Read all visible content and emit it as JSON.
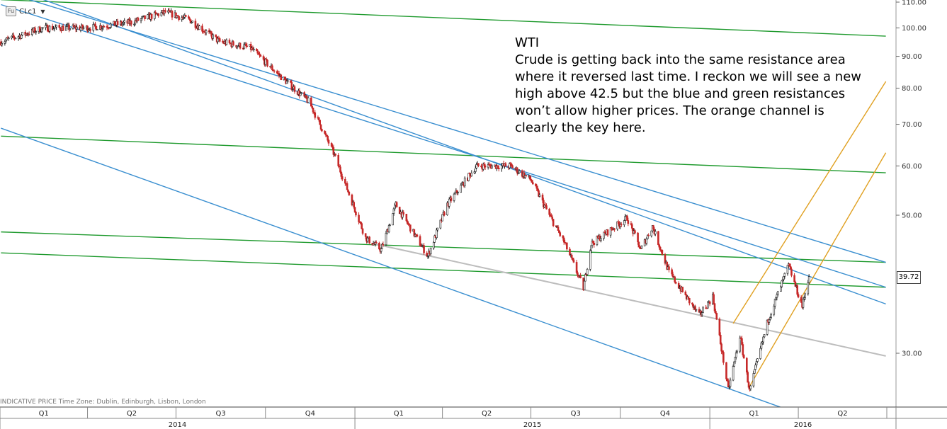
{
  "symbol": {
    "code": "CLc1",
    "badge": "Fu"
  },
  "footer_note": "INDICATIVE PRICE   Time Zone: Dublin, Edinburgh, Lisbon, London",
  "annotation": {
    "title": "WTI",
    "lines": [
      "Crude is getting back into the same resistance area",
      "where it reversed last time. I reckon we will see a new",
      "high above 42.5 but the blue and green resistances",
      "won’t allow higher prices. The orange channel is",
      "clearly the key here."
    ]
  },
  "colors": {
    "support_resistance_green": "#1f9a2e",
    "trend_blue": "#3a8fd0",
    "channel_orange": "#e0a020",
    "trend_gray": "#bdbdbd",
    "candle_up": "#1a1a1a",
    "candle_down": "#c62828"
  },
  "chart_data": {
    "type": "candlestick",
    "instrument": "CLc1",
    "y_scale": "log",
    "ylim": [
      24,
      112
    ],
    "y_ticks": [
      "110.00",
      "100.00",
      "90.00",
      "80.00",
      "70.00",
      "60.00",
      "50.00",
      "30.00"
    ],
    "last_price": "39.72",
    "quarters": [
      "Q1",
      "Q2",
      "Q3",
      "Q4",
      "Q1",
      "Q2",
      "Q3",
      "Q4",
      "Q1",
      "Q2"
    ],
    "years": [
      "2014",
      "2015",
      "2016"
    ],
    "price_path": [
      [
        "2014-01-02",
        95
      ],
      [
        "2014-02-15",
        100
      ],
      [
        "2014-04-01",
        100
      ],
      [
        "2014-05-15",
        102
      ],
      [
        "2014-06-20",
        106
      ],
      [
        "2014-07-15",
        103
      ],
      [
        "2014-08-15",
        95
      ],
      [
        "2014-09-15",
        93
      ],
      [
        "2014-10-15",
        84
      ],
      [
        "2014-11-15",
        76
      ],
      [
        "2014-12-10",
        63
      ],
      [
        "2015-01-12",
        46
      ],
      [
        "2015-01-28",
        44
      ],
      [
        "2015-02-12",
        52
      ],
      [
        "2015-03-17",
        43
      ],
      [
        "2015-04-06",
        52
      ],
      [
        "2015-05-06",
        60
      ],
      [
        "2015-06-10",
        60
      ],
      [
        "2015-07-01",
        57
      ],
      [
        "2015-07-20",
        50
      ],
      [
        "2015-08-05",
        45
      ],
      [
        "2015-08-24",
        38.2
      ],
      [
        "2015-09-01",
        45
      ],
      [
        "2015-10-08",
        49.5
      ],
      [
        "2015-10-22",
        44
      ],
      [
        "2015-11-03",
        48
      ],
      [
        "2015-11-20",
        40.5
      ],
      [
        "2015-12-21",
        34.5
      ],
      [
        "2016-01-04",
        37
      ],
      [
        "2016-01-20",
        26.2
      ],
      [
        "2016-02-01",
        32
      ],
      [
        "2016-02-11",
        26.1
      ],
      [
        "2016-03-01",
        34
      ],
      [
        "2016-03-22",
        41.5
      ],
      [
        "2016-04-05",
        35.7
      ],
      [
        "2016-04-12",
        40
      ]
    ],
    "trendlines": [
      {
        "color": "green",
        "from": [
          "2014-01-02",
          111
        ],
        "to": [
          "2016-06-30",
          97
        ]
      },
      {
        "color": "green",
        "from": [
          "2014-01-02",
          67
        ],
        "to": [
          "2016-06-30",
          58.5
        ]
      },
      {
        "color": "green",
        "from": [
          "2014-01-02",
          47
        ],
        "to": [
          "2016-06-30",
          42
        ]
      },
      {
        "color": "green",
        "from": [
          "2014-01-02",
          43.5
        ],
        "to": [
          "2016-06-30",
          38.3
        ]
      },
      {
        "color": "blue",
        "from": [
          "2014-01-15",
          113
        ],
        "to": [
          "2016-06-30",
          42
        ]
      },
      {
        "color": "blue",
        "from": [
          "2014-02-01",
          113
        ],
        "to": [
          "2016-06-30",
          36
        ]
      },
      {
        "color": "blue",
        "from": [
          "2014-01-02",
          109
        ],
        "to": [
          "2016-06-30",
          38.3
        ]
      },
      {
        "color": "blue",
        "from": [
          "2014-01-02",
          69
        ],
        "to": [
          "2016-04-01",
          24
        ]
      },
      {
        "color": "gray",
        "from": [
          "2015-01-20",
          45
        ],
        "to": [
          "2016-06-30",
          29.7
        ]
      },
      {
        "color": "orange",
        "from": [
          "2016-01-25",
          33.5
        ],
        "to": [
          "2016-06-30",
          82
        ]
      },
      {
        "color": "orange",
        "from": [
          "2016-02-10",
          26.4
        ],
        "to": [
          "2016-06-30",
          63
        ]
      }
    ]
  }
}
